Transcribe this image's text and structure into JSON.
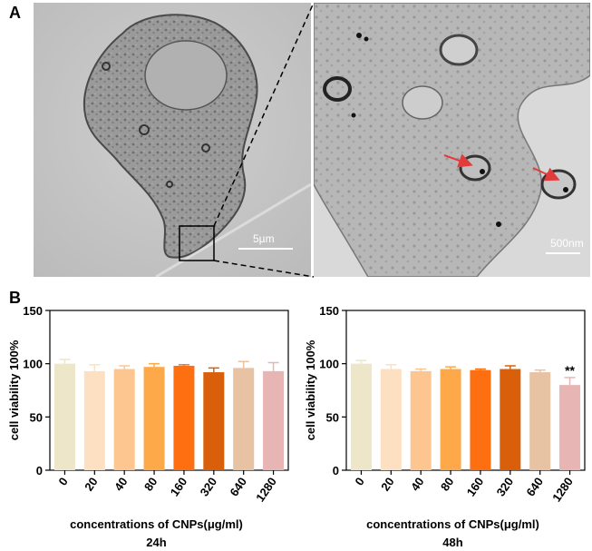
{
  "panel_labels": {
    "a": "A",
    "b": "B"
  },
  "scale_bars": {
    "left": "5µm",
    "right": "500nm"
  },
  "colors": {
    "em_light": "#c9c9c9",
    "em_mid": "#a8a8a8",
    "em_dark": "#555555",
    "arrow_red": "#e23b3b",
    "bar_colors": [
      "#ede6c9",
      "#fde0c2",
      "#fdc691",
      "#fda94a",
      "#fe6f11",
      "#d95f0a",
      "#e7c2a3",
      "#e8b5b5"
    ]
  },
  "chart_data": [
    {
      "type": "bar",
      "title": "",
      "xlabel": "concentrations of CNPs(μg/ml)",
      "ylabel": "cell viability 100%",
      "caption": "24h",
      "categories": [
        "0",
        "20",
        "40",
        "80",
        "160",
        "320",
        "640",
        "1280"
      ],
      "values": [
        100,
        93,
        95,
        97,
        98,
        92,
        96,
        93
      ],
      "errors": [
        4,
        6,
        3,
        3,
        1,
        4,
        6,
        8
      ],
      "annotations": [
        "",
        "",
        "",
        "",
        "",
        "",
        "",
        ""
      ],
      "ylim": [
        0,
        150
      ],
      "yticks": [
        "0",
        "50",
        "100",
        "150"
      ],
      "grid": false,
      "legend": "none"
    },
    {
      "type": "bar",
      "title": "",
      "xlabel": "concentrations of CNPs(μg/ml)",
      "ylabel": "cell viability 100%",
      "caption": "48h",
      "categories": [
        "0",
        "20",
        "40",
        "80",
        "160",
        "320",
        "640",
        "1280"
      ],
      "values": [
        100,
        95,
        93,
        95,
        94,
        95,
        92,
        80
      ],
      "errors": [
        3,
        4,
        2,
        2,
        1,
        3,
        2,
        7
      ],
      "annotations": [
        "",
        "",
        "",
        "",
        "",
        "",
        "",
        "**"
      ],
      "ylim": [
        0,
        150
      ],
      "yticks": [
        "0",
        "50",
        "100",
        "150"
      ],
      "grid": false,
      "legend": "none"
    }
  ]
}
